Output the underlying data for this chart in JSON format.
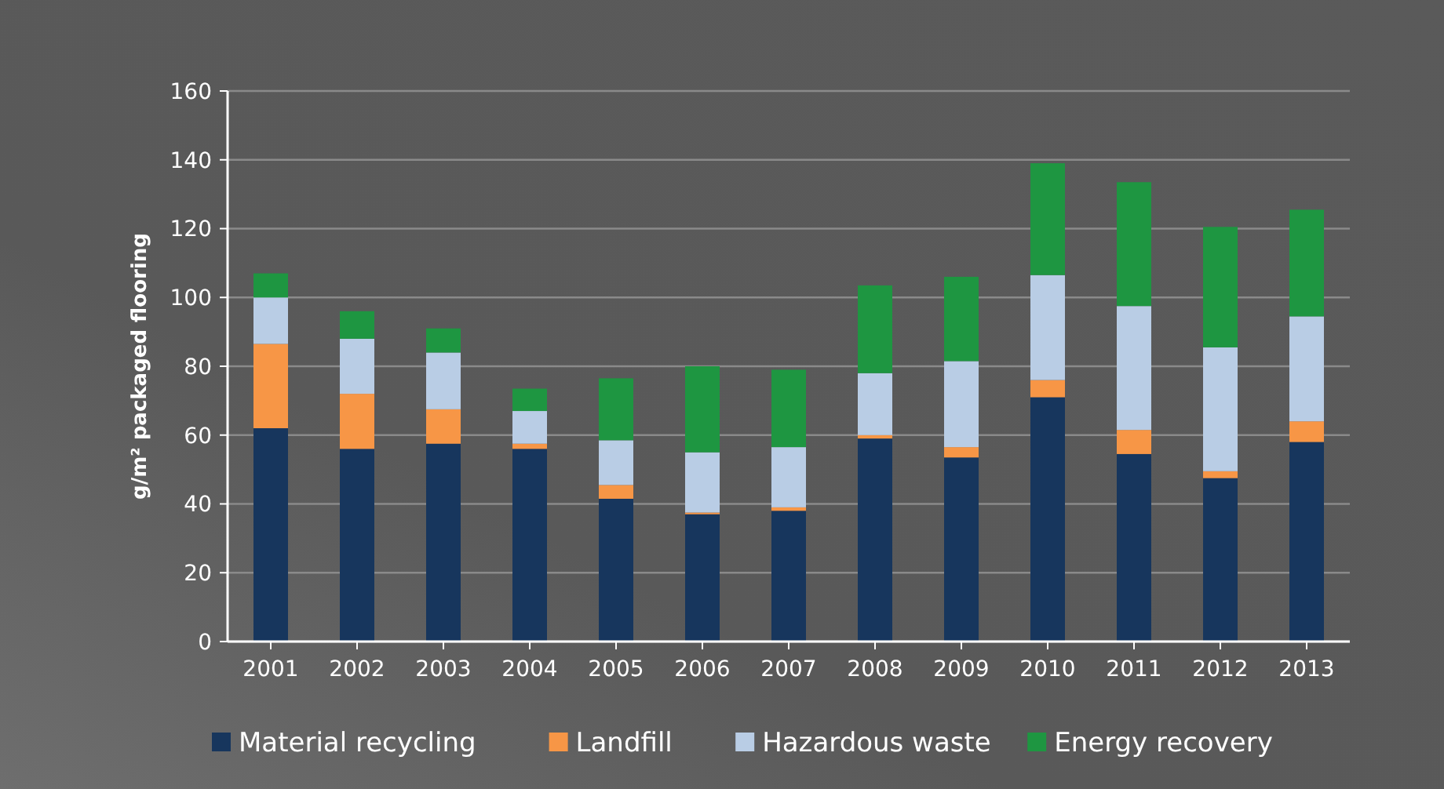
{
  "chart_data": {
    "type": "bar",
    "stacked": true,
    "ylabel": "g/m² packaged flooring",
    "categories": [
      "2001",
      "2002",
      "2003",
      "2004",
      "2005",
      "2006",
      "2007",
      "2008",
      "2009",
      "2010",
      "2011",
      "2012",
      "2013"
    ],
    "series": [
      {
        "name": "Material recycling",
        "color": "#17365d",
        "values": [
          62,
          56,
          57.5,
          56,
          41.5,
          37,
          38,
          59,
          53.5,
          71,
          54.5,
          47.5,
          58
        ]
      },
      {
        "name": "Landfill",
        "color": "#f79646",
        "values": [
          24.5,
          16,
          10,
          1.5,
          4,
          0.5,
          1,
          1,
          3,
          5,
          7,
          2,
          6
        ]
      },
      {
        "name": "Hazardous waste",
        "color": "#b9cde5",
        "values": [
          13.5,
          16,
          16.5,
          9.5,
          13,
          17.5,
          17.5,
          18,
          25,
          30.5,
          36,
          36,
          30.5
        ]
      },
      {
        "name": "Energy recovery",
        "color": "#1e9641",
        "values": [
          7,
          8,
          7,
          6.5,
          18,
          25,
          22.5,
          25.5,
          24.5,
          32.5,
          36,
          35,
          31
        ]
      }
    ],
    "ylim": [
      0,
      160
    ],
    "yticks": [
      0,
      20,
      40,
      60,
      80,
      100,
      120,
      140,
      160
    ],
    "grid": "y",
    "legend": "bottom"
  }
}
